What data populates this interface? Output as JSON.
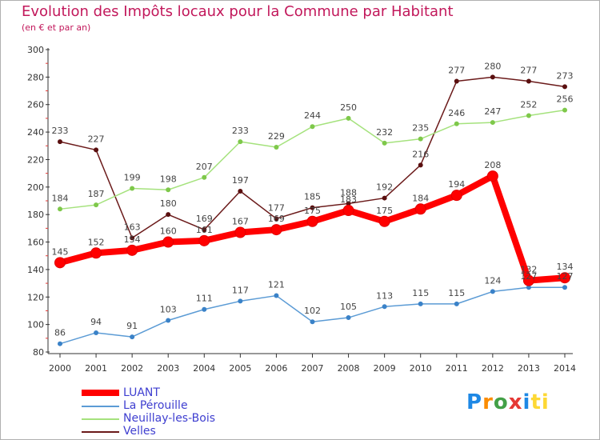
{
  "header": {
    "title": "Evolution des Impôts locaux pour la Commune par Habitant",
    "subtitle": "(en € et par an)"
  },
  "logo": {
    "text": "Proxiti",
    "letters": [
      "P",
      "r",
      "o",
      "x",
      "i",
      "ti"
    ]
  },
  "chart_data": {
    "type": "line",
    "title": "Evolution des Impôts locaux pour la Commune par Habitant",
    "subtitle": "(en € et par an)",
    "xlabel": "",
    "ylabel": "",
    "x": [
      "2000",
      "2001",
      "2002",
      "2003",
      "2004",
      "2005",
      "2006",
      "2007",
      "2008",
      "2009",
      "2010",
      "2011",
      "2012",
      "2013",
      "2014"
    ],
    "ylim": [
      80,
      300
    ],
    "yticks": [
      80,
      100,
      120,
      140,
      160,
      180,
      200,
      220,
      240,
      260,
      280,
      300
    ],
    "grid": false,
    "legend_position": "bottom-left",
    "series": [
      {
        "name": "Velles",
        "color": "#6b1a1a",
        "marker": "#5a0f0f",
        "values": [
          233,
          227,
          163,
          180,
          169,
          197,
          177,
          185,
          188,
          192,
          216,
          277,
          280,
          277,
          273
        ]
      },
      {
        "name": "Neuillay-les-Bois",
        "color": "#a5e27d",
        "marker": "#7ec84a",
        "values": [
          184,
          187,
          199,
          198,
          207,
          233,
          229,
          244,
          250,
          232,
          235,
          246,
          247,
          252,
          256
        ]
      },
      {
        "name": "La Pérouille",
        "color": "#5b9bd5",
        "marker": "#3a82c8",
        "values": [
          86,
          94,
          91,
          103,
          111,
          117,
          121,
          102,
          105,
          113,
          115,
          115,
          124,
          127,
          127
        ]
      },
      {
        "name": "LUANT",
        "color": "#ff0000",
        "marker": "#ff0000",
        "values": [
          145,
          152,
          154,
          160,
          161,
          167,
          169,
          175,
          183,
          175,
          184,
          194,
          208,
          132,
          134
        ]
      }
    ],
    "legend_order": [
      "LUANT",
      "La Pérouille",
      "Neuillay-les-Bois",
      "Velles"
    ]
  }
}
